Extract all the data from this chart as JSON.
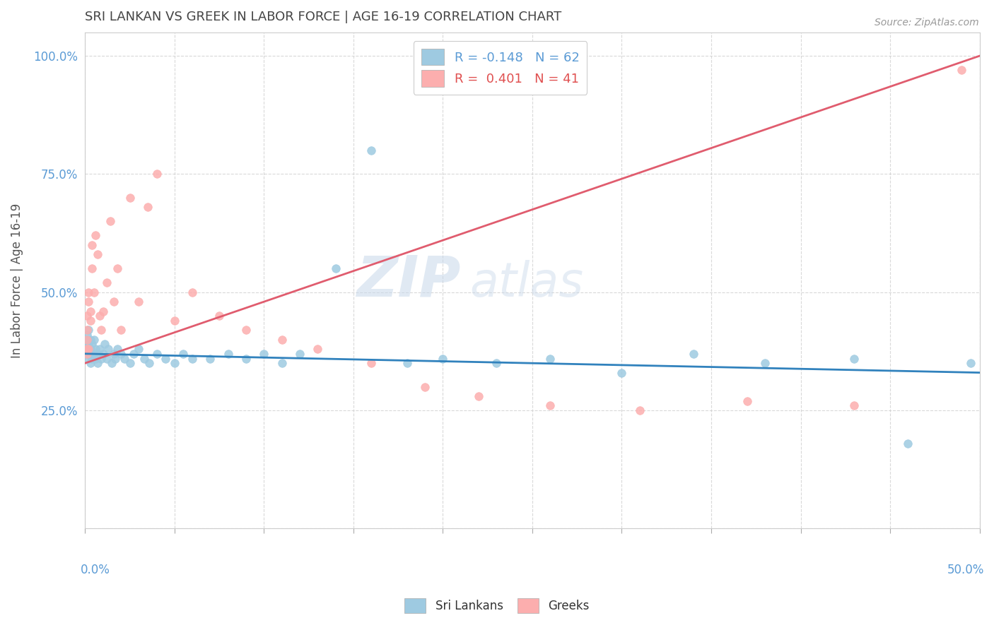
{
  "title": "SRI LANKAN VS GREEK IN LABOR FORCE | AGE 16-19 CORRELATION CHART",
  "source": "Source: ZipAtlas.com",
  "ylabel": "In Labor Force | Age 16-19",
  "yticks": [
    0.0,
    0.25,
    0.5,
    0.75,
    1.0
  ],
  "ytick_labels": [
    "",
    "25.0%",
    "50.0%",
    "75.0%",
    "100.0%"
  ],
  "xlim": [
    0.0,
    0.5
  ],
  "ylim": [
    0.0,
    1.05
  ],
  "sri_lankan_R": -0.148,
  "sri_lankan_N": 62,
  "greek_R": 0.401,
  "greek_N": 41,
  "sri_lankan_color": "#9ecae1",
  "greek_color": "#fcaeae",
  "sri_lankan_line_color": "#3182bd",
  "greek_line_color": "#e05c6e",
  "watermark_zip": "ZIP",
  "watermark_atlas": "atlas",
  "legend_label_sri": "Sri Lankans",
  "legend_label_greek": "Greeks",
  "sri_lankans_x": [
    0.001,
    0.001,
    0.001,
    0.001,
    0.001,
    0.002,
    0.002,
    0.002,
    0.002,
    0.002,
    0.003,
    0.003,
    0.003,
    0.003,
    0.004,
    0.004,
    0.005,
    0.005,
    0.006,
    0.006,
    0.007,
    0.007,
    0.008,
    0.009,
    0.01,
    0.011,
    0.012,
    0.013,
    0.015,
    0.016,
    0.017,
    0.018,
    0.02,
    0.022,
    0.025,
    0.027,
    0.03,
    0.033,
    0.036,
    0.04,
    0.045,
    0.05,
    0.055,
    0.06,
    0.07,
    0.08,
    0.09,
    0.1,
    0.11,
    0.12,
    0.14,
    0.16,
    0.18,
    0.2,
    0.23,
    0.26,
    0.3,
    0.34,
    0.38,
    0.43,
    0.46,
    0.495
  ],
  "sri_lankans_y": [
    0.37,
    0.38,
    0.39,
    0.4,
    0.41,
    0.36,
    0.37,
    0.38,
    0.39,
    0.42,
    0.35,
    0.37,
    0.38,
    0.4,
    0.36,
    0.39,
    0.37,
    0.4,
    0.36,
    0.38,
    0.35,
    0.37,
    0.38,
    0.36,
    0.37,
    0.39,
    0.36,
    0.38,
    0.35,
    0.37,
    0.36,
    0.38,
    0.37,
    0.36,
    0.35,
    0.37,
    0.38,
    0.36,
    0.35,
    0.37,
    0.36,
    0.35,
    0.37,
    0.36,
    0.36,
    0.37,
    0.36,
    0.37,
    0.35,
    0.37,
    0.55,
    0.8,
    0.35,
    0.36,
    0.35,
    0.36,
    0.33,
    0.37,
    0.35,
    0.36,
    0.18,
    0.35
  ],
  "greeks_x": [
    0.001,
    0.001,
    0.001,
    0.001,
    0.001,
    0.002,
    0.002,
    0.002,
    0.003,
    0.003,
    0.004,
    0.004,
    0.005,
    0.006,
    0.007,
    0.008,
    0.009,
    0.01,
    0.012,
    0.014,
    0.016,
    0.018,
    0.02,
    0.025,
    0.03,
    0.035,
    0.04,
    0.05,
    0.06,
    0.075,
    0.09,
    0.11,
    0.13,
    0.16,
    0.19,
    0.22,
    0.26,
    0.31,
    0.37,
    0.43,
    0.49
  ],
  "greeks_y": [
    0.37,
    0.38,
    0.4,
    0.42,
    0.45,
    0.38,
    0.5,
    0.48,
    0.44,
    0.46,
    0.6,
    0.55,
    0.5,
    0.62,
    0.58,
    0.45,
    0.42,
    0.46,
    0.52,
    0.65,
    0.48,
    0.55,
    0.42,
    0.7,
    0.48,
    0.68,
    0.75,
    0.44,
    0.5,
    0.45,
    0.42,
    0.4,
    0.38,
    0.35,
    0.3,
    0.28,
    0.26,
    0.25,
    0.27,
    0.26,
    0.97
  ]
}
